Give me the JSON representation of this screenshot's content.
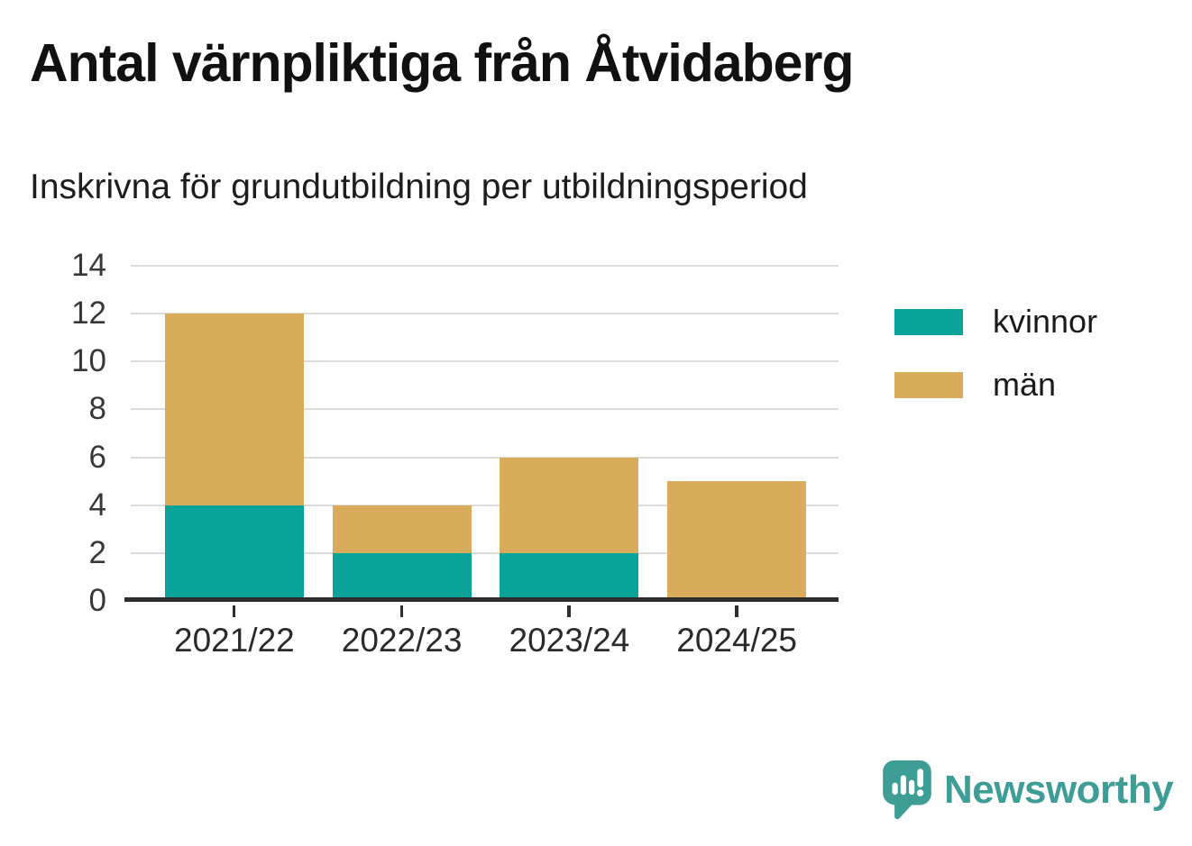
{
  "chart_data": {
    "type": "bar",
    "stacked": true,
    "title": "Antal värnpliktiga från Åtvidaberg",
    "subtitle": "Inskrivna för grundutbildning per utbildningsperiod",
    "categories": [
      "2021/22",
      "2022/23",
      "2023/24",
      "2024/25"
    ],
    "series": [
      {
        "name": "kvinnor",
        "color": "#0aa39a",
        "values": [
          4,
          2,
          2,
          0
        ]
      },
      {
        "name": "män",
        "color": "#d9ac5b",
        "values": [
          8,
          2,
          4,
          5
        ]
      }
    ],
    "totals": [
      12,
      4,
      6,
      5
    ],
    "ylim": [
      0,
      14
    ],
    "yticks": [
      0,
      2,
      4,
      6,
      8,
      10,
      12,
      14
    ],
    "grid": true,
    "legend_position": "right"
  },
  "colors": {
    "kvinnor": "#0aa39a",
    "man": "#d9ac5b",
    "grid": "#dcdcdc",
    "axis": "#2d2d2d",
    "logo": "#3e9e96"
  },
  "footer": {
    "brand": "Newsworthy"
  }
}
